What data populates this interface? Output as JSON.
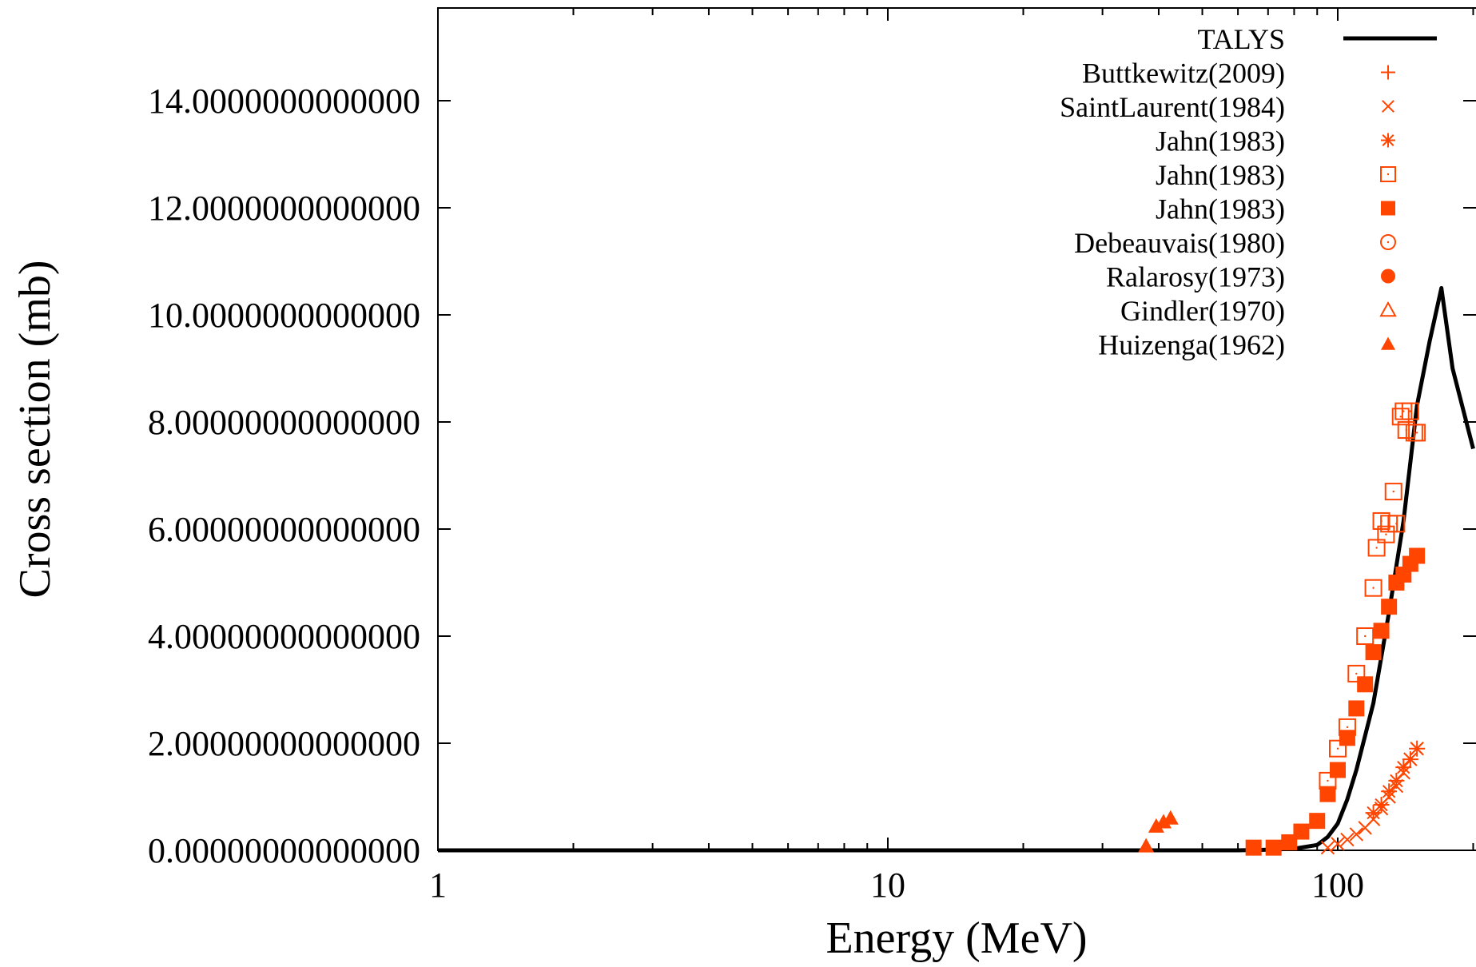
{
  "chart_data": {
    "type": "scatter",
    "title": "",
    "xlabel": "Energy (MeV)",
    "ylabel": "Cross section (mb)",
    "xscale": "log",
    "xlim": [
      1,
      230
    ],
    "ylim": [
      0,
      15.6
    ],
    "x_ticks": [
      1,
      10,
      100
    ],
    "x_tick_labels": [
      "1",
      "10",
      "100"
    ],
    "y_ticks": [
      0,
      2,
      4,
      6,
      8,
      10,
      12,
      14
    ],
    "y_tick_labels": [
      "0.00000000000000",
      "2.00000000000000",
      "4.00000000000000",
      "6.00000000000000",
      "8.00000000000000",
      "10.0000000000000",
      "12.0000000000000",
      "14.0000000000000"
    ],
    "grid": false,
    "legend_position": "top-right",
    "colors": {
      "experiment": "#ff4500",
      "model": "#000000"
    },
    "series": [
      {
        "name": "TALYS",
        "marker": "line",
        "color": "#000000",
        "x": [
          1,
          20,
          40,
          60,
          70,
          80,
          90,
          95,
          100,
          105,
          110,
          120,
          130,
          140,
          150,
          160,
          170,
          180,
          200
        ],
        "y": [
          0,
          0,
          0,
          0,
          0.01,
          0.03,
          0.1,
          0.25,
          0.5,
          0.95,
          1.5,
          2.75,
          4.45,
          6.15,
          8.3,
          9.5,
          10.5,
          9.0,
          7.5
        ]
      },
      {
        "name": "Buttkewitz(2009)",
        "marker": "plus",
        "color": "#ff4500",
        "x": [],
        "y": []
      },
      {
        "name": "SaintLaurent(1984)",
        "marker": "cross",
        "color": "#ff4500",
        "x": [
          95,
          100,
          105,
          110,
          115,
          120,
          125,
          130,
          135,
          140,
          145,
          150
        ],
        "y": [
          0.05,
          0.12,
          0.2,
          0.3,
          0.42,
          0.58,
          0.78,
          1.0,
          1.2,
          1.45,
          1.7,
          1.9
        ]
      },
      {
        "name": "Jahn(1983)",
        "marker": "star",
        "color": "#ff4500",
        "x": [
          120,
          125,
          130,
          135,
          140,
          145,
          150
        ],
        "y": [
          0.7,
          0.85,
          1.1,
          1.3,
          1.55,
          1.7,
          1.9
        ]
      },
      {
        "name": "Jahn(1983)",
        "marker": "square-open",
        "color": "#ff4500",
        "x": [
          95,
          100,
          105,
          110,
          115,
          120,
          122,
          125,
          128,
          130,
          133,
          135,
          138,
          140,
          142,
          145,
          148,
          150
        ],
        "y": [
          1.3,
          1.9,
          2.3,
          3.3,
          4.0,
          4.9,
          5.65,
          6.15,
          5.9,
          6.1,
          6.7,
          6.1,
          8.1,
          8.2,
          7.85,
          8.2,
          7.8,
          7.8
        ]
      },
      {
        "name": "Jahn(1983)",
        "marker": "square",
        "color": "#ff4500",
        "x": [
          65,
          72,
          78,
          83,
          90,
          95,
          100,
          105,
          110,
          115,
          120,
          125,
          130,
          135,
          140,
          145,
          150
        ],
        "y": [
          0.05,
          0.05,
          0.15,
          0.35,
          0.55,
          1.05,
          1.5,
          2.1,
          2.65,
          3.1,
          3.7,
          4.1,
          4.55,
          5.0,
          5.15,
          5.35,
          5.5
        ]
      },
      {
        "name": "Debeauvais(1980)",
        "marker": "circle-open",
        "color": "#ff4500",
        "x": [],
        "y": []
      },
      {
        "name": "Ralarosy(1973)",
        "marker": "circle",
        "color": "#ff4500",
        "x": [],
        "y": []
      },
      {
        "name": "Gindler(1970)",
        "marker": "triangle-open",
        "color": "#ff4500",
        "x": [],
        "y": []
      },
      {
        "name": "Huizenga(1962)",
        "marker": "triangle",
        "color": "#ff4500",
        "x": [
          37.5,
          39.5,
          41,
          42.5
        ],
        "y": [
          0.08,
          0.45,
          0.53,
          0.6
        ]
      }
    ]
  }
}
